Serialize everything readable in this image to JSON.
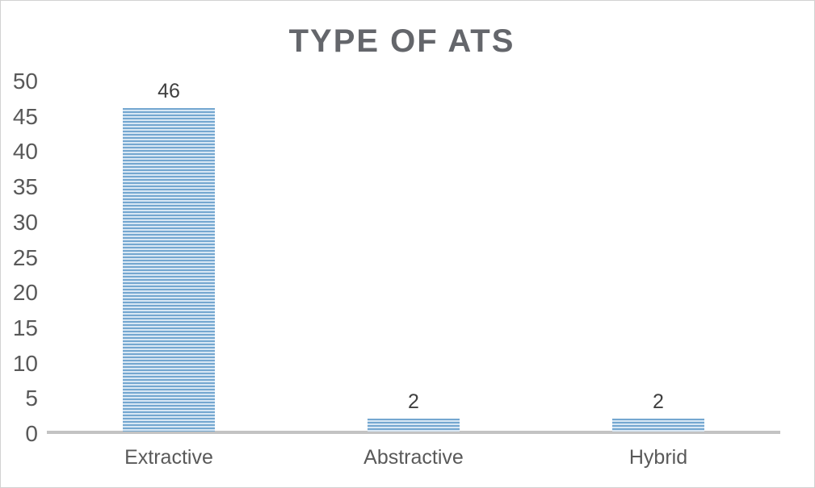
{
  "chart_data": {
    "type": "bar",
    "title": "TYPE OF ATS",
    "categories": [
      "Extractive",
      "Abstractive",
      "Hybrid"
    ],
    "values": [
      46,
      2,
      2
    ],
    "data_labels": [
      "46",
      "2",
      "2"
    ],
    "xlabel": "",
    "ylabel": "",
    "ylim": [
      0,
      50
    ],
    "yticks": [
      0,
      5,
      10,
      15,
      20,
      25,
      30,
      35,
      40,
      45,
      50
    ],
    "grid": false,
    "legend": "none",
    "bar_fill_style": "horizontal-stripe-pattern",
    "colors": {
      "bar_stripe_dark": "#74a7d0",
      "bar_stripe_light": "#d8e7f4",
      "title_text": "#64666b",
      "axis_text": "#595959",
      "data_label_text": "#3f3f3f",
      "axis_line": "#c3c3c3",
      "frame_border": "#d2d2d2"
    }
  }
}
